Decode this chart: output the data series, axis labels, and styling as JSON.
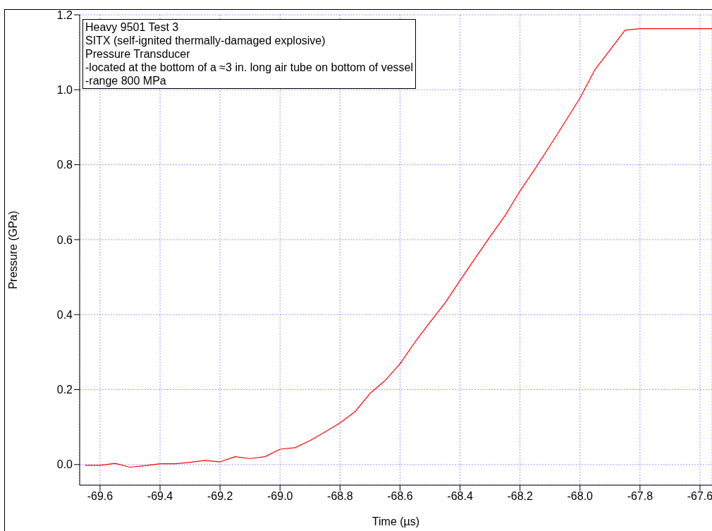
{
  "chart_data": {
    "type": "line",
    "xlabel": "Time (µs)",
    "ylabel": "Pressure (GPa)",
    "annotations": [
      "Heavy 9501 Test 3",
      "SITX (self-ignited thermally-damaged explosive)",
      "Pressure Transducer",
      "-located at the bottom of a ≈3 in. long air tube on bottom of vessel",
      "-range 800 MPa"
    ],
    "x": [
      -69.65,
      -69.6,
      -69.55,
      -69.5,
      -69.45,
      -69.4,
      -69.35,
      -69.3,
      -69.25,
      -69.2,
      -69.15,
      -69.1,
      -69.05,
      -69.0,
      -68.95,
      -68.9,
      -68.85,
      -68.8,
      -68.75,
      -68.7,
      -68.65,
      -68.6,
      -68.55,
      -68.5,
      -68.45,
      -68.4,
      -68.35,
      -68.3,
      -68.25,
      -68.2,
      -68.15,
      -68.1,
      -68.05,
      -68.0,
      -67.95,
      -67.9,
      -67.85,
      -67.8,
      -67.75,
      -67.7,
      -67.65,
      -67.6,
      -67.56
    ],
    "series": [
      {
        "color": "#ff0000",
        "values": [
          -0.002,
          -0.002,
          0.003,
          -0.007,
          -0.003,
          0.002,
          0.002,
          0.006,
          0.011,
          0.007,
          0.021,
          0.016,
          0.021,
          0.041,
          0.045,
          0.064,
          0.087,
          0.111,
          0.141,
          0.19,
          0.224,
          0.269,
          0.327,
          0.38,
          0.431,
          0.491,
          0.55,
          0.608,
          0.664,
          0.73,
          0.789,
          0.851,
          0.914,
          0.978,
          1.054,
          1.106,
          1.159,
          1.163,
          1.163,
          1.163,
          1.163,
          1.163,
          1.163
        ]
      }
    ],
    "xlim": [
      -69.668,
      -67.56
    ],
    "xticks": [
      {
        "value": -69.6,
        "label": "-69.6"
      },
      {
        "value": -69.4,
        "label": "-69.4"
      },
      {
        "value": -69.2,
        "label": "-69.2"
      },
      {
        "value": -69.0,
        "label": "-69.0"
      },
      {
        "value": -68.8,
        "label": "-68.8"
      },
      {
        "value": -68.6,
        "label": "-68.6"
      },
      {
        "value": -68.4,
        "label": "-68.4"
      },
      {
        "value": -68.2,
        "label": "-68.2"
      },
      {
        "value": -68.0,
        "label": "-68.0"
      },
      {
        "value": -67.8,
        "label": "-67.8"
      },
      {
        "value": -67.6,
        "label": "-67.6"
      }
    ],
    "ylim": [
      -0.055,
      1.2
    ],
    "yticks": [
      {
        "value": 0,
        "label": "0.0"
      },
      {
        "value": 0.2,
        "label": "0.2"
      },
      {
        "value": 0.4,
        "label": "0.4"
      },
      {
        "value": 0.6,
        "label": "0.6"
      },
      {
        "value": 0.8,
        "label": "0.8"
      },
      {
        "value": 1.0,
        "label": "1.0"
      },
      {
        "value": 1.2,
        "label": "1.2"
      }
    ],
    "grid": true,
    "legend": false,
    "marker": "none",
    "line_style": "solid"
  }
}
